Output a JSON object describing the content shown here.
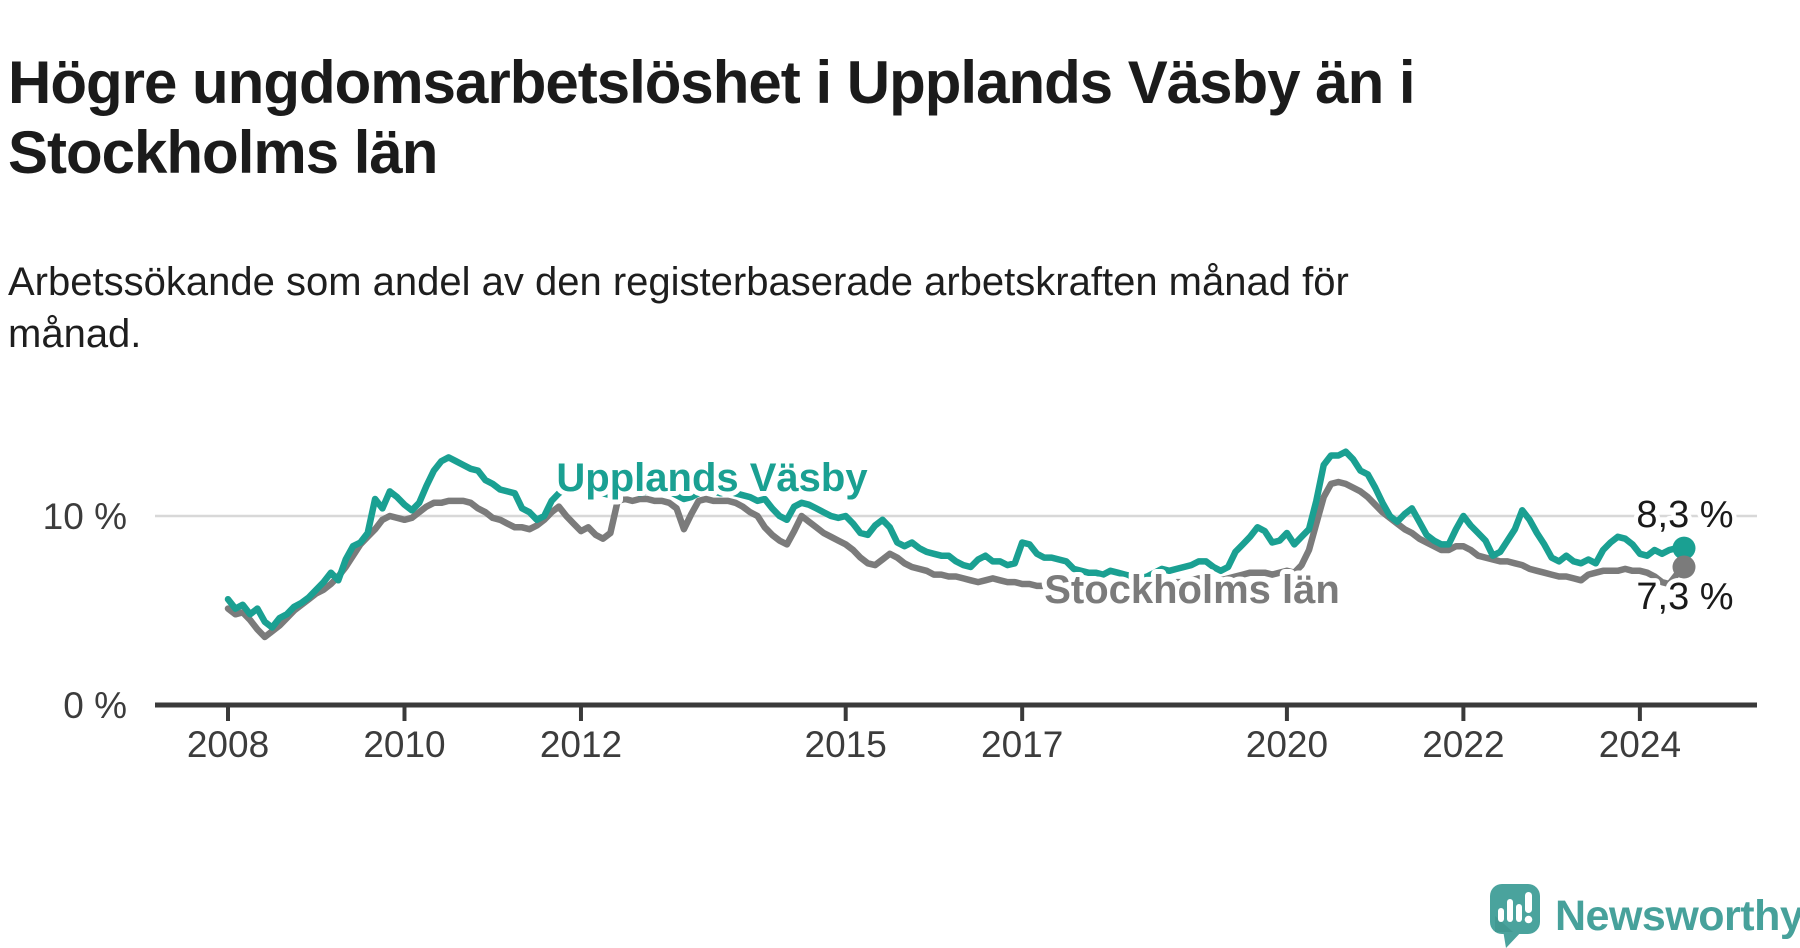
{
  "header": {
    "title": "Högre ungdomsarbetslöshet i Upplands Väsby än i Stockholms län",
    "subtitle": "Arbetssökande som andel av den registerbaserade arbetskraften månad för månad."
  },
  "branding": {
    "name": "Newsworthy",
    "logo_icon": "speech-bubble-bar-chart",
    "logo_color": "#4aa39d",
    "text_color": "#47a19b"
  },
  "colors": {
    "series_upplands": "#1aa092",
    "series_stockholm": "#7b7b7b",
    "gridline": "#d8d8d8",
    "axis": "#3a3a3a",
    "tick_text": "#3c3c3c",
    "value_label_text": "#1a1a1a",
    "background": "#ffffff"
  },
  "chart_data": {
    "type": "line",
    "title": "Högre ungdomsarbetslöshet i Upplands Väsby än i Stockholms län",
    "subtitle": "Arbetssökande som andel av den registerbaserade arbetskraften månad för månad.",
    "frequency": "monthly",
    "x_start": "2008-01",
    "x_end": "2024-07",
    "xlabel": "",
    "ylabel": "",
    "ylim": [
      0,
      14.5
    ],
    "grid": "horizontal-10-only",
    "legend_position": "inline-labels",
    "y_ticks": [
      {
        "value": 0,
        "label": "0 %"
      },
      {
        "value": 10,
        "label": "10 %"
      }
    ],
    "x_ticks": [
      {
        "year": 2008,
        "label": "2008"
      },
      {
        "year": 2010,
        "label": "2010"
      },
      {
        "year": 2012,
        "label": "2012"
      },
      {
        "year": 2015,
        "label": "2015"
      },
      {
        "year": 2017,
        "label": "2017"
      },
      {
        "year": 2020,
        "label": "2020"
      },
      {
        "year": 2022,
        "label": "2022"
      },
      {
        "year": 2024,
        "label": "2024"
      }
    ],
    "series": [
      {
        "name": "Upplands Väsby",
        "color": "#1aa092",
        "end_value_label": "8,3 %",
        "values": [
          5.6,
          5.1,
          5.3,
          4.8,
          5.1,
          4.4,
          4.1,
          4.6,
          4.8,
          5.2,
          5.4,
          5.7,
          6.1,
          6.5,
          7.0,
          6.6,
          7.7,
          8.4,
          8.6,
          9.1,
          10.9,
          10.4,
          11.3,
          11.0,
          10.6,
          10.3,
          10.7,
          11.6,
          12.4,
          12.9,
          13.1,
          12.9,
          12.7,
          12.5,
          12.4,
          11.9,
          11.7,
          11.4,
          11.3,
          11.2,
          10.4,
          10.2,
          9.8,
          10.0,
          10.8,
          11.2,
          11.5,
          11.6,
          11.8,
          11.6,
          11.4,
          11.2,
          11.1,
          11.3,
          11.5,
          11.4,
          11.2,
          11.3,
          11.4,
          11.3,
          11.3,
          11.1,
          10.9,
          11.0,
          11.2,
          11.4,
          11.3,
          11.2,
          11.3,
          11.2,
          11.1,
          11.0,
          10.8,
          10.9,
          10.4,
          10.0,
          9.8,
          10.5,
          10.7,
          10.6,
          10.4,
          10.2,
          10.0,
          9.9,
          10.0,
          9.6,
          9.1,
          9.0,
          9.5,
          9.8,
          9.4,
          8.6,
          8.4,
          8.6,
          8.3,
          8.1,
          8.0,
          7.9,
          7.9,
          7.6,
          7.4,
          7.3,
          7.7,
          7.9,
          7.6,
          7.6,
          7.4,
          7.5,
          8.6,
          8.5,
          8.0,
          7.8,
          7.8,
          7.7,
          7.6,
          7.2,
          7.1,
          7.0,
          7.0,
          6.9,
          7.1,
          7.0,
          6.9,
          6.8,
          6.7,
          6.8,
          7.0,
          7.2,
          7.1,
          7.2,
          7.3,
          7.4,
          7.6,
          7.6,
          7.3,
          7.1,
          7.3,
          8.1,
          8.5,
          8.9,
          9.4,
          9.2,
          8.6,
          8.7,
          9.1,
          8.5,
          8.9,
          9.3,
          10.8,
          12.7,
          13.2,
          13.2,
          13.4,
          13.0,
          12.4,
          12.2,
          11.5,
          10.7,
          10.0,
          9.7,
          10.1,
          10.4,
          9.7,
          9.0,
          8.7,
          8.5,
          8.5,
          9.3,
          10.0,
          9.5,
          9.1,
          8.7,
          7.9,
          8.1,
          8.7,
          9.3,
          10.3,
          9.8,
          9.1,
          8.5,
          7.8,
          7.6,
          7.9,
          7.6,
          7.5,
          7.7,
          7.5,
          8.2,
          8.6,
          8.9,
          8.8,
          8.5,
          8.0,
          7.9,
          8.2,
          8.0,
          8.2,
          8.3,
          8.3
        ]
      },
      {
        "name": "Stockholms län",
        "color": "#7b7b7b",
        "end_value_label": "7,3 %",
        "values": [
          5.1,
          4.8,
          4.9,
          4.5,
          4.0,
          3.6,
          3.9,
          4.2,
          4.6,
          5.0,
          5.3,
          5.6,
          5.9,
          6.1,
          6.4,
          6.8,
          7.3,
          7.9,
          8.5,
          8.9,
          9.3,
          9.8,
          10.0,
          9.9,
          9.8,
          9.9,
          10.2,
          10.5,
          10.7,
          10.7,
          10.8,
          10.8,
          10.8,
          10.7,
          10.4,
          10.2,
          9.9,
          9.8,
          9.6,
          9.4,
          9.4,
          9.3,
          9.5,
          9.8,
          10.2,
          10.5,
          10.0,
          9.6,
          9.2,
          9.4,
          9.0,
          8.8,
          9.1,
          10.8,
          10.9,
          10.8,
          10.9,
          10.9,
          10.8,
          10.8,
          10.7,
          10.4,
          9.3,
          10.1,
          10.8,
          10.9,
          10.8,
          10.8,
          10.8,
          10.7,
          10.5,
          10.2,
          10.0,
          9.4,
          9.0,
          8.7,
          8.5,
          9.2,
          10.0,
          9.7,
          9.4,
          9.1,
          8.9,
          8.7,
          8.5,
          8.2,
          7.8,
          7.5,
          7.4,
          7.7,
          8.0,
          7.8,
          7.5,
          7.3,
          7.2,
          7.1,
          6.9,
          6.9,
          6.8,
          6.8,
          6.7,
          6.6,
          6.5,
          6.6,
          6.7,
          6.6,
          6.5,
          6.5,
          6.4,
          6.4,
          6.3,
          6.3,
          6.2,
          6.3,
          6.4,
          6.3,
          6.3,
          6.2,
          6.2,
          6.2,
          6.3,
          6.2,
          6.2,
          6.1,
          6.1,
          6.2,
          6.3,
          6.4,
          6.4,
          6.5,
          6.5,
          6.6,
          6.7,
          6.7,
          6.6,
          6.6,
          6.7,
          6.8,
          6.9,
          7.0,
          7.0,
          7.0,
          6.9,
          7.0,
          7.1,
          7.0,
          7.4,
          8.2,
          9.6,
          11.0,
          11.7,
          11.8,
          11.7,
          11.5,
          11.3,
          11.0,
          10.6,
          10.2,
          9.9,
          9.6,
          9.3,
          9.1,
          8.8,
          8.6,
          8.4,
          8.2,
          8.2,
          8.4,
          8.4,
          8.2,
          7.9,
          7.8,
          7.7,
          7.6,
          7.6,
          7.5,
          7.4,
          7.2,
          7.1,
          7.0,
          6.9,
          6.8,
          6.8,
          6.7,
          6.6,
          6.9,
          7.0,
          7.1,
          7.1,
          7.1,
          7.2,
          7.1,
          7.1,
          7.0,
          6.8,
          6.5,
          6.4,
          6.9,
          7.3
        ]
      }
    ]
  }
}
